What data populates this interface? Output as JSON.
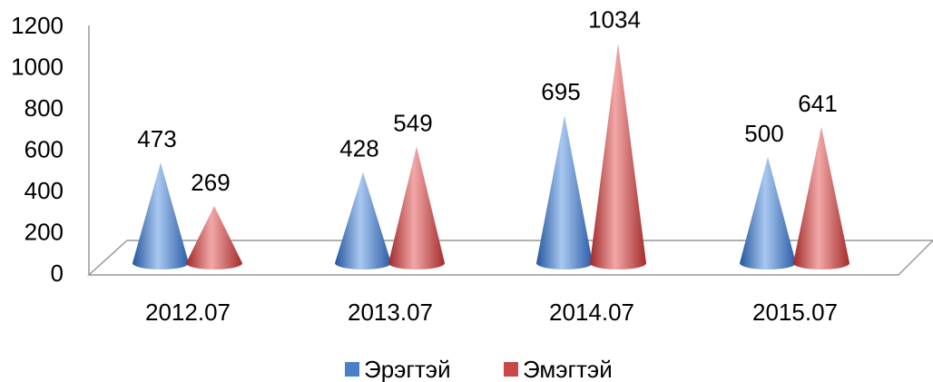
{
  "chart_data": {
    "type": "bar",
    "categories": [
      "2012.07",
      "2013.07",
      "2014.07",
      "2015.07"
    ],
    "series": [
      {
        "name": "Эрэгтэй",
        "color": "#4a7ec8",
        "values": [
          473,
          428,
          695,
          500
        ]
      },
      {
        "name": "Эмэгтэй",
        "color": "#c84848",
        "values": [
          269,
          549,
          1034,
          641
        ]
      }
    ],
    "ylim": [
      0,
      1200
    ],
    "yticks": [
      0,
      200,
      400,
      600,
      800,
      1000,
      1200
    ],
    "legend": "bottom"
  }
}
